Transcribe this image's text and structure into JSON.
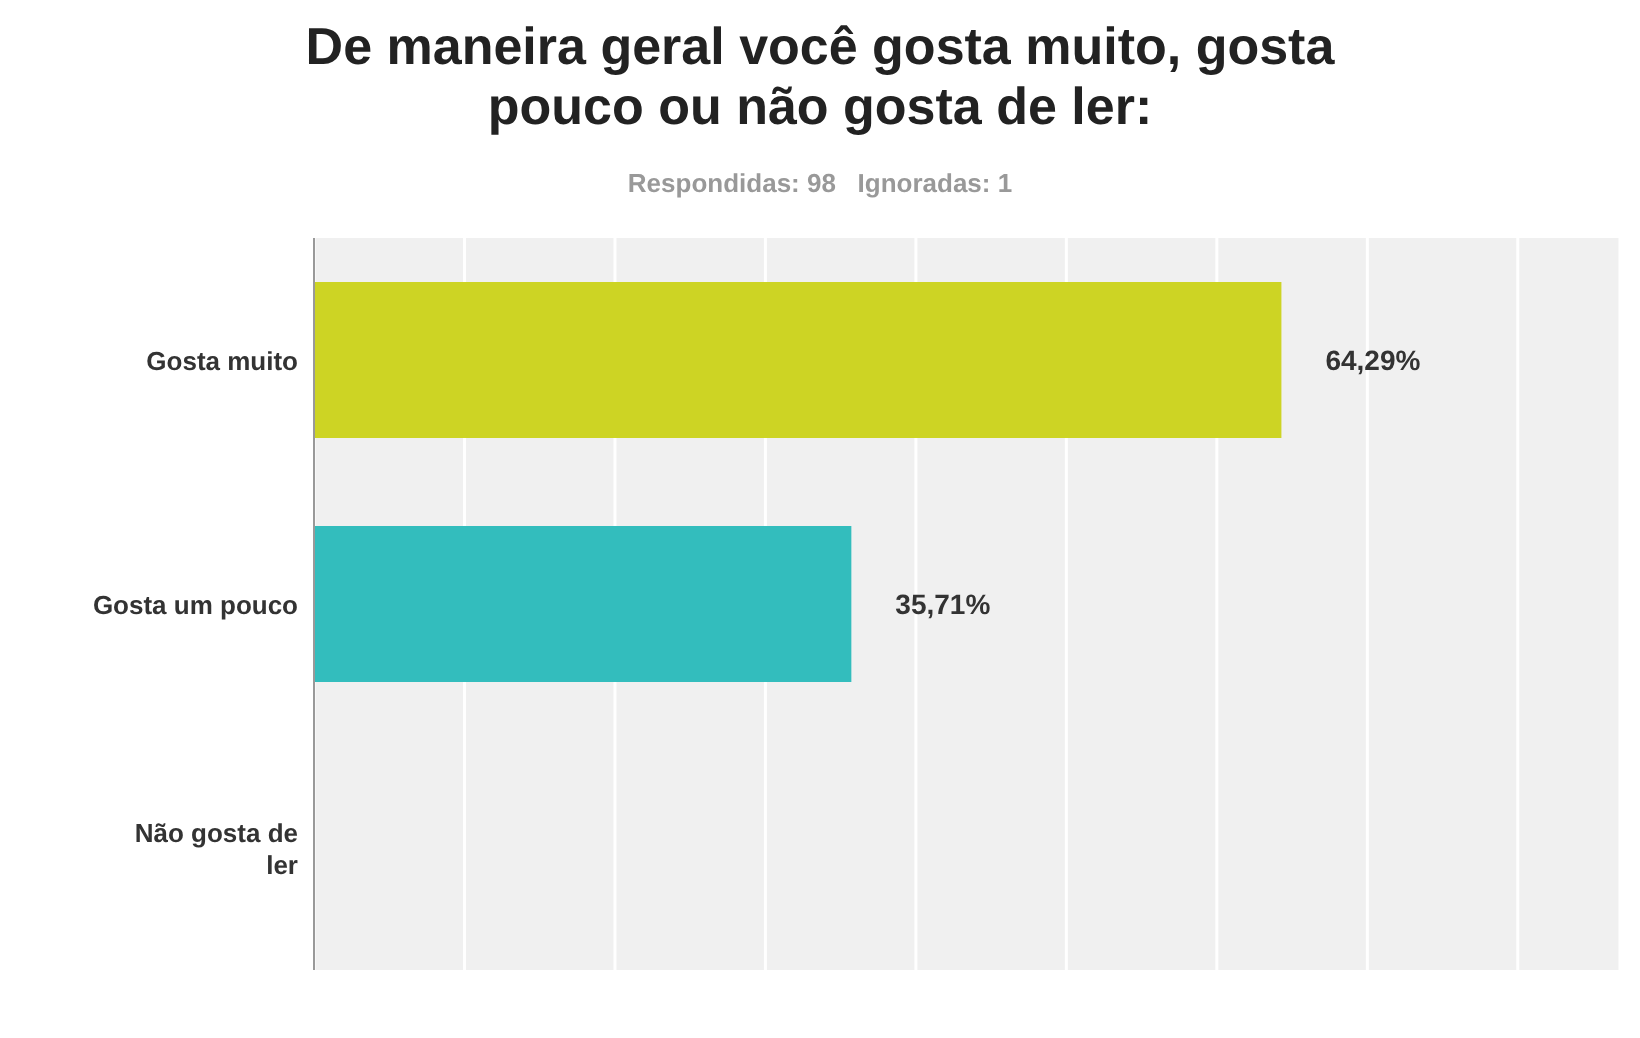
{
  "chart_data": {
    "type": "bar",
    "orientation": "horizontal",
    "title": "De maneira geral você gosta muito, gosta pouco ou não gosta de ler:",
    "subtitle": "Respondidas: 98   Ignoradas: 1",
    "categories": [
      "Gosta muito",
      "Gosta um pouco",
      "Não gosta de ler"
    ],
    "values": [
      64.29,
      35.71,
      0
    ],
    "colors": [
      "#cdd424",
      "#33bdbd",
      "#999999"
    ],
    "value_labels": [
      "64,29%",
      "35,71%",
      null
    ],
    "grid": "x",
    "tick_labels": "y",
    "legend": false
  }
}
